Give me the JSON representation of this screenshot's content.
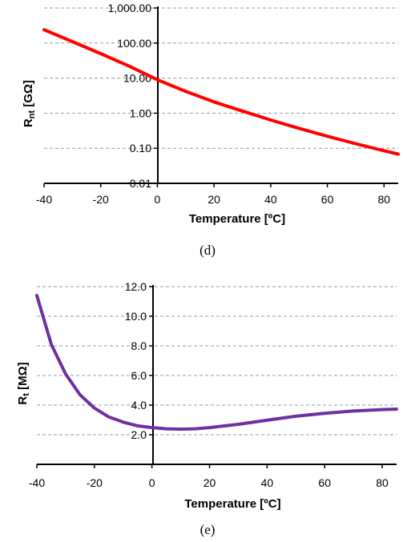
{
  "chart_data": [
    {
      "type": "line",
      "caption": "(d)",
      "xlabel": "Temperature [ºC]",
      "ylabel": "R",
      "ylabel_sub": "nt",
      "ylabel_unit": " [GΩ]",
      "x_ticks": [
        "-40",
        "-20",
        "0",
        "20",
        "40",
        "60",
        "80"
      ],
      "y_ticks": [
        "0.01",
        "0.10",
        "1.00",
        "10.00",
        "100.00",
        "1,000.00"
      ],
      "xlim": [
        -40,
        85
      ],
      "ylim": [
        0.01,
        1000
      ],
      "yscale": "log",
      "grid": true,
      "series": [
        {
          "color": "#ff0000",
          "x": [
            -40,
            -30,
            -20,
            -10,
            0,
            10,
            20,
            30,
            40,
            50,
            60,
            70,
            80,
            85
          ],
          "y": [
            240,
            110,
            50,
            22,
            9,
            4.2,
            2.1,
            1.15,
            0.64,
            0.37,
            0.22,
            0.135,
            0.085,
            0.068
          ]
        }
      ]
    },
    {
      "type": "line",
      "caption": "(e)",
      "xlabel": "Temperature [ºC]",
      "ylabel": "R",
      "ylabel_sub": "t",
      "ylabel_unit": " [MΩ]",
      "x_ticks": [
        "-40",
        "-20",
        "0",
        "20",
        "40",
        "60",
        "80"
      ],
      "y_ticks": [
        "2.0",
        "4.0",
        "6.0",
        "8.0",
        "10.0",
        "12.0"
      ],
      "xlim": [
        -40,
        85
      ],
      "ylim": [
        0,
        12
      ],
      "yscale": "linear",
      "grid": true,
      "series": [
        {
          "color": "#7030a0",
          "x": [
            -40,
            -35,
            -30,
            -25,
            -20,
            -15,
            -10,
            -5,
            0,
            5,
            10,
            15,
            20,
            30,
            40,
            50,
            60,
            70,
            80,
            85
          ],
          "y": [
            11.4,
            8.1,
            6.1,
            4.7,
            3.8,
            3.2,
            2.85,
            2.6,
            2.48,
            2.4,
            2.38,
            2.4,
            2.48,
            2.7,
            2.98,
            3.25,
            3.45,
            3.6,
            3.7,
            3.73
          ]
        }
      ]
    }
  ]
}
